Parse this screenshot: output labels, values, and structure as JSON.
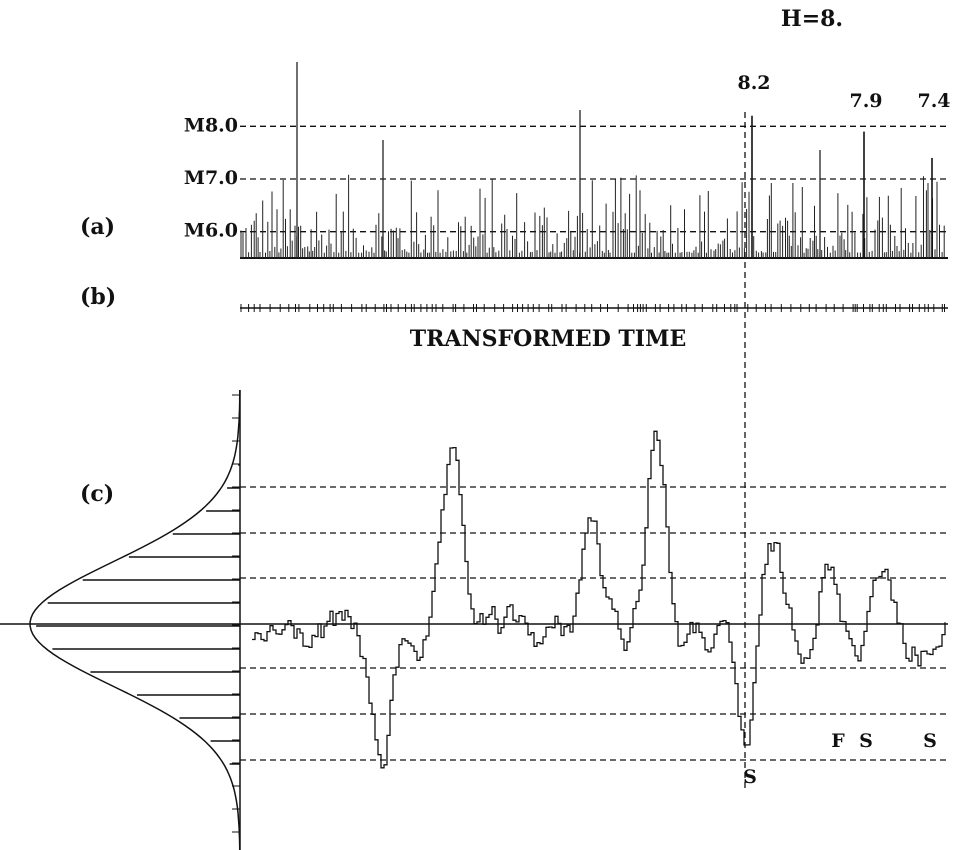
{
  "figure": {
    "title": "H=8.",
    "panels": [
      "(a)",
      "(b)",
      "(c)"
    ],
    "axis_label": "TRANSFORMED TIME",
    "magnitude_axis": {
      "ylim": [
        5.5,
        8.5
      ],
      "yticks": [
        {
          "value": 8,
          "label": "M8.0"
        },
        {
          "value": 7,
          "label": "M7.0"
        },
        {
          "value": 6,
          "label": "M6.0"
        }
      ]
    },
    "peaks": [
      8.2,
      7.9,
      7.4
    ],
    "minima_labels": [
      "S",
      "F",
      "S",
      "S"
    ]
  }
}
